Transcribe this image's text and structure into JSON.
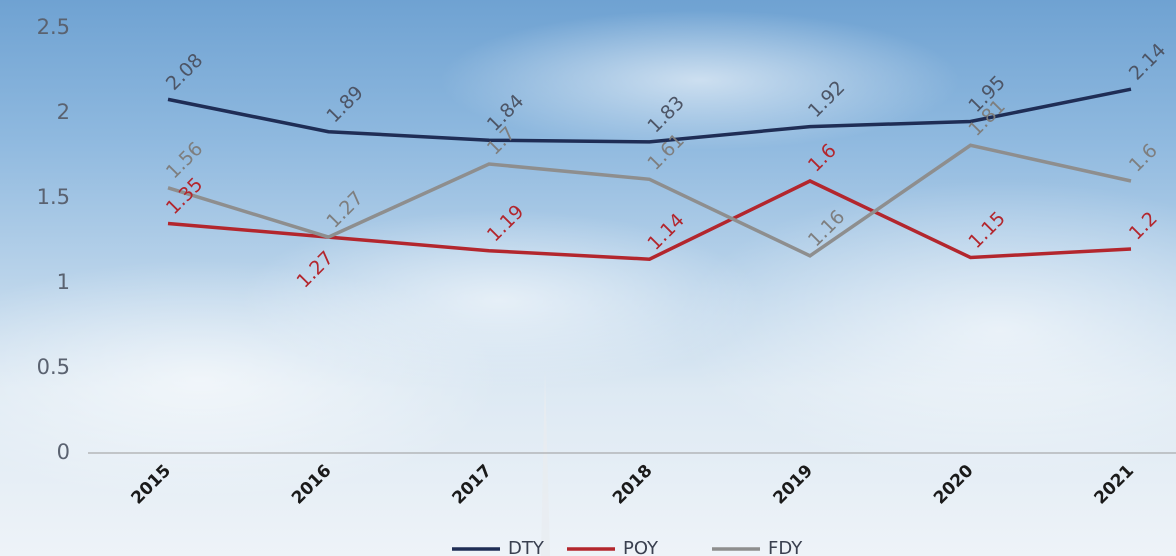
{
  "chart_data": {
    "type": "line",
    "categories": [
      "2015",
      "2016",
      "2017",
      "2018",
      "2019",
      "2020",
      "2021"
    ],
    "series": [
      {
        "name": "DTY",
        "color": "#1f2d55",
        "label_color": "#4d5566",
        "values": [
          2.08,
          1.89,
          1.84,
          1.83,
          1.92,
          1.95,
          2.14
        ]
      },
      {
        "name": "POY",
        "color": "#b3262d",
        "label_color": "#b3262d",
        "values": [
          1.35,
          1.27,
          1.19,
          1.14,
          1.6,
          1.15,
          1.2
        ]
      },
      {
        "name": "FDY",
        "color": "#8e8e8e",
        "label_color": "#7e7e7e",
        "values": [
          1.56,
          1.27,
          1.7,
          1.61,
          1.16,
          1.81,
          1.6
        ]
      }
    ],
    "ylim": [
      0,
      2.5
    ],
    "yticks": [
      0,
      0.5,
      1,
      1.5,
      2,
      2.5
    ],
    "grid": false,
    "legend": "bottom"
  }
}
